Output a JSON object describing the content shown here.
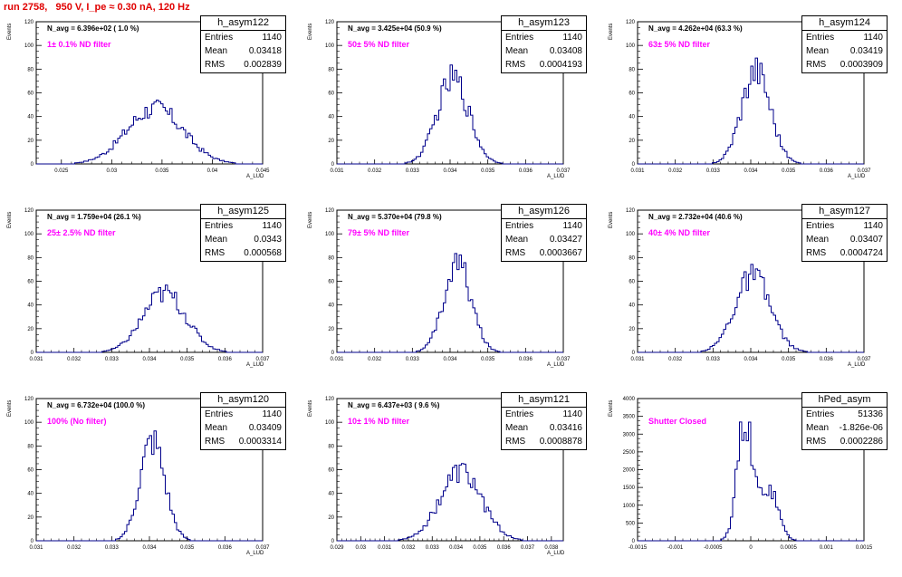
{
  "page_title": "run 2758,   950 V, I_pe ≈ 0.30 nA, 120 Hz",
  "chart_data": [
    {
      "type": "bar",
      "title": "h_asym122",
      "stats": {
        "entries": "1140",
        "mean": "0.03418",
        "rms": "0.002839"
      },
      "n_avg": "N_avg = 6.396e+02 ( 1.0 %)",
      "filter": "1± 0.1% ND filter",
      "xlabel": "A_LUD",
      "ylabel": "Events",
      "xlim": [
        0.0225,
        0.045
      ],
      "ylim": [
        0,
        120
      ],
      "x_ticks": [
        0.025,
        0.03,
        0.035,
        0.04,
        0.045
      ],
      "x_tick_labels": [
        "0.025",
        "0.03",
        "0.035",
        "0.04",
        "0.045"
      ],
      "y_ticks": [
        0,
        20,
        40,
        60,
        80,
        100,
        120
      ],
      "y_tick_labels": [
        "0",
        "20",
        "40",
        "60",
        "80",
        "100",
        "120"
      ],
      "shape": [
        {
          "mu": 0.0343,
          "sigma": 0.0028,
          "amp": 47
        }
      ]
    },
    {
      "type": "bar",
      "title": "h_asym123",
      "stats": {
        "entries": "1140",
        "mean": "0.03408",
        "rms": "0.0004193"
      },
      "n_avg": "N_avg = 3.425e+04 (50.9 %)",
      "filter": "50± 5% ND filter",
      "xlabel": "A_LUD",
      "ylabel": "Events",
      "xlim": [
        0.031,
        0.037
      ],
      "ylim": [
        0,
        120
      ],
      "x_ticks": [
        0.031,
        0.032,
        0.033,
        0.034,
        0.035,
        0.036,
        0.037
      ],
      "x_tick_labels": [
        "0.031",
        "0.032",
        "0.033",
        "0.034",
        "0.035",
        "0.036",
        "0.037"
      ],
      "y_ticks": [
        0,
        20,
        40,
        60,
        80,
        100,
        120
      ],
      "y_tick_labels": [
        "0",
        "20",
        "40",
        "60",
        "80",
        "100",
        "120"
      ],
      "shape": [
        {
          "mu": 0.03408,
          "sigma": 0.00042,
          "amp": 72
        }
      ]
    },
    {
      "type": "bar",
      "title": "h_asym124",
      "stats": {
        "entries": "1140",
        "mean": "0.03419",
        "rms": "0.0003909"
      },
      "n_avg": "N_avg = 4.262e+04 (63.3 %)",
      "filter": "63± 5% ND filter",
      "xlabel": "A_LUD",
      "ylabel": "Events",
      "xlim": [
        0.031,
        0.037
      ],
      "ylim": [
        0,
        120
      ],
      "x_ticks": [
        0.031,
        0.032,
        0.033,
        0.034,
        0.035,
        0.036,
        0.037
      ],
      "x_tick_labels": [
        "0.031",
        "0.032",
        "0.033",
        "0.034",
        "0.035",
        "0.036",
        "0.037"
      ],
      "y_ticks": [
        0,
        20,
        40,
        60,
        80,
        100,
        120
      ],
      "y_tick_labels": [
        "0",
        "20",
        "40",
        "60",
        "80",
        "100",
        "120"
      ],
      "shape": [
        {
          "mu": 0.03414,
          "sigma": 0.00038,
          "amp": 80
        }
      ]
    },
    {
      "type": "bar",
      "title": "h_asym125",
      "stats": {
        "entries": "1140",
        "mean": "0.0343",
        "rms": "0.000568"
      },
      "n_avg": "N_avg = 1.759e+04 (26.1 %)",
      "filter": "25± 2.5% ND filter",
      "xlabel": "A_LUD",
      "ylabel": "Events",
      "xlim": [
        0.031,
        0.037
      ],
      "ylim": [
        0,
        120
      ],
      "x_ticks": [
        0.031,
        0.032,
        0.033,
        0.034,
        0.035,
        0.036,
        0.037
      ],
      "x_tick_labels": [
        "0.031",
        "0.032",
        "0.033",
        "0.034",
        "0.035",
        "0.036",
        "0.037"
      ],
      "y_ticks": [
        0,
        20,
        40,
        60,
        80,
        100,
        120
      ],
      "y_tick_labels": [
        "0",
        "20",
        "40",
        "60",
        "80",
        "100",
        "120"
      ],
      "shape": [
        {
          "mu": 0.0344,
          "sigma": 0.00057,
          "amp": 50
        }
      ]
    },
    {
      "type": "bar",
      "title": "h_asym126",
      "stats": {
        "entries": "1140",
        "mean": "0.03427",
        "rms": "0.0003667"
      },
      "n_avg": "N_avg = 5.370e+04 (79.8 %)",
      "filter": "79± 5% ND filter",
      "xlabel": "A_LUD",
      "ylabel": "Events",
      "xlim": [
        0.031,
        0.037
      ],
      "ylim": [
        0,
        120
      ],
      "x_ticks": [
        0.031,
        0.032,
        0.033,
        0.034,
        0.035,
        0.036,
        0.037
      ],
      "x_tick_labels": [
        "0.031",
        "0.032",
        "0.033",
        "0.034",
        "0.035",
        "0.036",
        "0.037"
      ],
      "y_ticks": [
        0,
        20,
        40,
        60,
        80,
        100,
        120
      ],
      "y_tick_labels": [
        "0",
        "20",
        "40",
        "60",
        "80",
        "100",
        "120"
      ],
      "shape": [
        {
          "mu": 0.0342,
          "sigma": 0.00036,
          "amp": 75
        }
      ]
    },
    {
      "type": "bar",
      "title": "h_asym127",
      "stats": {
        "entries": "1140",
        "mean": "0.03407",
        "rms": "0.0004724"
      },
      "n_avg": "N_avg = 2.732e+04 (40.6 %)",
      "filter": "40± 4% ND filter",
      "xlabel": "A_LUD",
      "ylabel": "Events",
      "xlim": [
        0.031,
        0.037
      ],
      "ylim": [
        0,
        120
      ],
      "x_ticks": [
        0.031,
        0.032,
        0.033,
        0.034,
        0.035,
        0.036,
        0.037
      ],
      "x_tick_labels": [
        "0.031",
        "0.032",
        "0.033",
        "0.034",
        "0.035",
        "0.036",
        "0.037"
      ],
      "y_ticks": [
        0,
        20,
        40,
        60,
        80,
        100,
        120
      ],
      "y_tick_labels": [
        "0",
        "20",
        "40",
        "60",
        "80",
        "100",
        "120"
      ],
      "shape": [
        {
          "mu": 0.03405,
          "sigma": 0.00047,
          "amp": 64
        }
      ]
    },
    {
      "type": "bar",
      "title": "h_asym120",
      "stats": {
        "entries": "1140",
        "mean": "0.03409",
        "rms": "0.0003314"
      },
      "n_avg": "N_avg = 6.732e+04 (100.0 %)",
      "filter": "100% (No filter)",
      "xlabel": "A_LUD",
      "ylabel": "Events",
      "xlim": [
        0.031,
        0.037
      ],
      "ylim": [
        0,
        120
      ],
      "x_ticks": [
        0.031,
        0.032,
        0.033,
        0.034,
        0.035,
        0.036,
        0.037
      ],
      "x_tick_labels": [
        "0.031",
        "0.032",
        "0.033",
        "0.034",
        "0.035",
        "0.036",
        "0.037"
      ],
      "y_ticks": [
        0,
        20,
        40,
        60,
        80,
        100,
        120
      ],
      "y_tick_labels": [
        "0",
        "20",
        "40",
        "60",
        "80",
        "100",
        "120"
      ],
      "shape": [
        {
          "mu": 0.03408,
          "sigma": 0.00033,
          "amp": 84
        }
      ]
    },
    {
      "type": "bar",
      "title": "h_asym121",
      "stats": {
        "entries": "1140",
        "mean": "0.03416",
        "rms": "0.0008878"
      },
      "n_avg": "N_avg = 6.437e+03 ( 9.6 %)",
      "filter": "10± 1% ND filter",
      "xlabel": "A_LUD",
      "ylabel": "Events",
      "xlim": [
        0.029,
        0.0385
      ],
      "ylim": [
        0,
        120
      ],
      "x_ticks": [
        0.029,
        0.03,
        0.031,
        0.032,
        0.033,
        0.034,
        0.035,
        0.036,
        0.037,
        0.038
      ],
      "x_tick_labels": [
        "0.029",
        "0.03",
        "0.031",
        "0.032",
        "0.033",
        "0.034",
        "0.035",
        "0.036",
        "0.037",
        "0.038"
      ],
      "y_ticks": [
        0,
        20,
        40,
        60,
        80,
        100,
        120
      ],
      "y_tick_labels": [
        "0",
        "20",
        "40",
        "60",
        "80",
        "100",
        "120"
      ],
      "shape": [
        {
          "mu": 0.0342,
          "sigma": 0.00088,
          "amp": 58
        }
      ]
    },
    {
      "type": "bar",
      "title": "hPed_asym",
      "stats": {
        "entries": "51336",
        "mean": "-1.826e-06",
        "rms": "0.0002286"
      },
      "n_avg": "",
      "filter": "Shutter Closed",
      "xlabel": "",
      "ylabel": "Events",
      "xlim": [
        -0.0015,
        0.0015
      ],
      "ylim": [
        0,
        4000
      ],
      "x_ticks": [
        -0.0015,
        -0.001,
        -0.0005,
        0,
        0.0005,
        0.001,
        0.0015
      ],
      "x_tick_labels": [
        "-0.0015",
        "-0.001",
        "-0.0005",
        "0",
        "0.0005",
        "0.001",
        "0.0015"
      ],
      "y_ticks": [
        0,
        500,
        1000,
        1500,
        2000,
        2500,
        3000,
        3500,
        4000
      ],
      "y_tick_labels": [
        "0",
        "500",
        "1000",
        "1500",
        "2000",
        "2500",
        "3000",
        "3500",
        "4000"
      ],
      "shape": [
        {
          "mu": -8e-05,
          "sigma": 0.0001,
          "amp": 3350
        },
        {
          "mu": 0.00024,
          "sigma": 0.00012,
          "amp": 1500
        }
      ]
    }
  ]
}
